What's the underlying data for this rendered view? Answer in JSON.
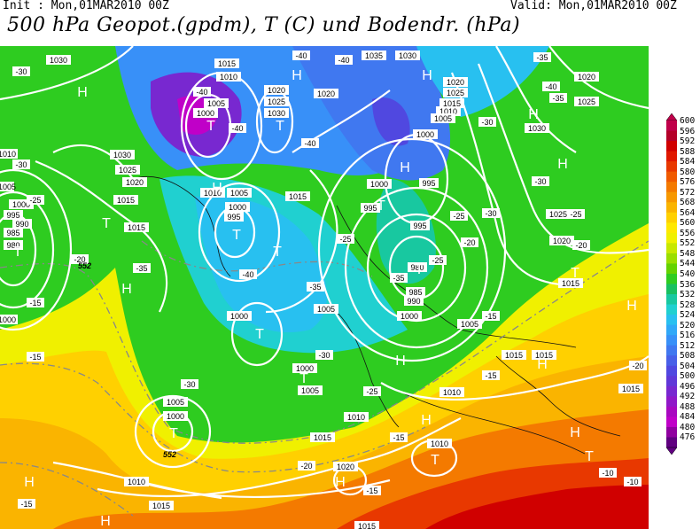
{
  "header": {
    "init": "Init : Mon,01MAR2010 00Z",
    "valid": "Valid: Mon,01MAR2010 00Z",
    "title": "500 hPa Geopot.(gpdm), T (C) und Bodendr. (hPa)"
  },
  "colorbar": {
    "labels": [
      "600",
      "596",
      "592",
      "588",
      "584",
      "580",
      "576",
      "572",
      "568",
      "564",
      "560",
      "556",
      "552",
      "548",
      "544",
      "540",
      "536",
      "532",
      "528",
      "524",
      "520",
      "516",
      "512",
      "508",
      "504",
      "500",
      "496",
      "492",
      "488",
      "484",
      "480",
      "476"
    ],
    "colors": [
      "#c0004a",
      "#b40028",
      "#d00000",
      "#e01800",
      "#e83800",
      "#f05a00",
      "#f47a00",
      "#f79800",
      "#fab400",
      "#ffd000",
      "#ffe800",
      "#f0f000",
      "#c8e800",
      "#9ade00",
      "#64d200",
      "#2ecc20",
      "#18c060",
      "#18c8a0",
      "#20d0d0",
      "#28c0f0",
      "#30a8f8",
      "#3890f8",
      "#4078f0",
      "#4860e8",
      "#5048e0",
      "#6038d8",
      "#7828d0",
      "#9018c8",
      "#a808c0",
      "#c000c8",
      "#9000a0",
      "#600080"
    ]
  },
  "pressure_labels": [
    "1030",
    "1020",
    "1015",
    "1010",
    "1005",
    "1000",
    "995",
    "990",
    "985",
    "980",
    "1025",
    "1035"
  ],
  "temp_labels": [
    "-30",
    "-40",
    "-35",
    "-25",
    "-20",
    "-15",
    "-10"
  ],
  "highs": [
    "H",
    "H",
    "H",
    "H",
    "H",
    "H",
    "H",
    "H",
    "H",
    "H",
    "H",
    "H",
    "H",
    "H",
    "H",
    "H"
  ],
  "lows": [
    "T",
    "T",
    "T",
    "T",
    "T",
    "T",
    "T",
    "T",
    "T",
    "T",
    "T",
    "T",
    "T",
    "T"
  ],
  "geopot_labels": [
    "552",
    "552"
  ]
}
